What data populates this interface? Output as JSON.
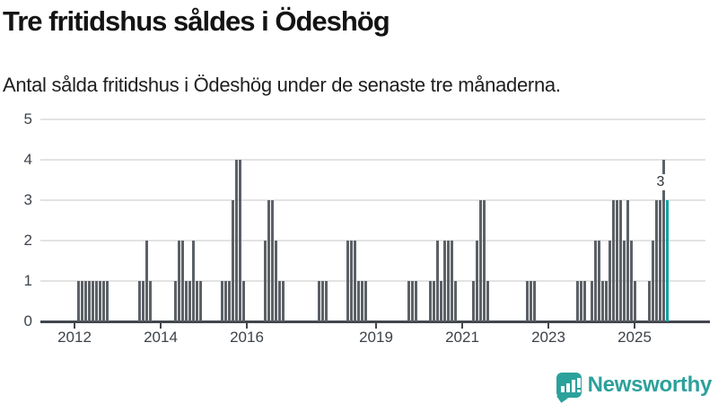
{
  "header": {
    "title": "Tre fritidshus såldes i Ödeshög",
    "subtitle": "Antal sålda fritidshus i Ödeshög under de senaste tre månaderna."
  },
  "footer": {
    "brand": "Newsworthy",
    "icon": "newsworthy-speech-bubble-chart-icon"
  },
  "colors": {
    "bar": "#5c6167",
    "highlight": "#0ea2a2",
    "grid": "#e3e3e3",
    "axis": "#42474d",
    "tick_label": "#3d4349",
    "brand": "#2ba19b"
  },
  "chart_data": {
    "type": "bar",
    "title": "Tre fritidshus såldes i Ödeshög",
    "subtitle": "Antal sålda fritidshus i Ödeshög under de senaste tre månaderna.",
    "unit": "sold vacation homes per rolling 3 months",
    "start_month": "2012-01",
    "end_month": "2025-10",
    "ylim": [
      0,
      5
    ],
    "yticks": [
      0,
      1,
      2,
      3,
      4,
      5
    ],
    "grid": true,
    "legend_position": "none",
    "x_ticks": [
      {
        "label": "2012",
        "month_index": 0
      },
      {
        "label": "2014",
        "month_index": 24
      },
      {
        "label": "2016",
        "month_index": 48
      },
      {
        "label": "2019",
        "month_index": 84
      },
      {
        "label": "2021",
        "month_index": 108
      },
      {
        "label": "2023",
        "month_index": 132
      },
      {
        "label": "2025",
        "month_index": 156
      }
    ],
    "highlight": {
      "month": "2025-10",
      "value": 3,
      "label": "3"
    },
    "points_note": "monthly values; months not listed are 0",
    "points": [
      [
        "2012-02",
        1
      ],
      [
        "2012-03",
        1
      ],
      [
        "2012-04",
        1
      ],
      [
        "2012-05",
        1
      ],
      [
        "2012-06",
        1
      ],
      [
        "2012-07",
        1
      ],
      [
        "2012-08",
        1
      ],
      [
        "2012-09",
        1
      ],
      [
        "2012-10",
        1
      ],
      [
        "2013-07",
        1
      ],
      [
        "2013-08",
        1
      ],
      [
        "2013-09",
        2
      ],
      [
        "2013-10",
        1
      ],
      [
        "2014-05",
        1
      ],
      [
        "2014-06",
        2
      ],
      [
        "2014-07",
        2
      ],
      [
        "2014-08",
        1
      ],
      [
        "2014-09",
        1
      ],
      [
        "2014-10",
        2
      ],
      [
        "2014-11",
        1
      ],
      [
        "2014-12",
        1
      ],
      [
        "2015-06",
        1
      ],
      [
        "2015-07",
        1
      ],
      [
        "2015-08",
        1
      ],
      [
        "2015-09",
        3
      ],
      [
        "2015-10",
        4
      ],
      [
        "2015-11",
        4
      ],
      [
        "2015-12",
        1
      ],
      [
        "2016-06",
        2
      ],
      [
        "2016-07",
        3
      ],
      [
        "2016-08",
        3
      ],
      [
        "2016-09",
        2
      ],
      [
        "2016-10",
        1
      ],
      [
        "2016-11",
        1
      ],
      [
        "2017-09",
        1
      ],
      [
        "2017-10",
        1
      ],
      [
        "2017-11",
        1
      ],
      [
        "2018-05",
        2
      ],
      [
        "2018-06",
        2
      ],
      [
        "2018-07",
        2
      ],
      [
        "2018-08",
        1
      ],
      [
        "2018-09",
        1
      ],
      [
        "2018-10",
        1
      ],
      [
        "2019-10",
        1
      ],
      [
        "2019-11",
        1
      ],
      [
        "2019-12",
        1
      ],
      [
        "2020-04",
        1
      ],
      [
        "2020-05",
        1
      ],
      [
        "2020-06",
        2
      ],
      [
        "2020-07",
        1
      ],
      [
        "2020-08",
        2
      ],
      [
        "2020-09",
        2
      ],
      [
        "2020-10",
        2
      ],
      [
        "2020-11",
        1
      ],
      [
        "2021-04",
        1
      ],
      [
        "2021-05",
        2
      ],
      [
        "2021-06",
        3
      ],
      [
        "2021-07",
        3
      ],
      [
        "2021-08",
        1
      ],
      [
        "2022-07",
        1
      ],
      [
        "2022-08",
        1
      ],
      [
        "2022-09",
        1
      ],
      [
        "2023-09",
        1
      ],
      [
        "2023-10",
        1
      ],
      [
        "2023-11",
        1
      ],
      [
        "2024-01",
        1
      ],
      [
        "2024-02",
        2
      ],
      [
        "2024-03",
        2
      ],
      [
        "2024-04",
        1
      ],
      [
        "2024-05",
        1
      ],
      [
        "2024-06",
        2
      ],
      [
        "2024-07",
        3
      ],
      [
        "2024-08",
        3
      ],
      [
        "2024-09",
        3
      ],
      [
        "2024-10",
        2
      ],
      [
        "2024-11",
        3
      ],
      [
        "2024-12",
        2
      ],
      [
        "2025-01",
        1
      ],
      [
        "2025-05",
        1
      ],
      [
        "2025-06",
        2
      ],
      [
        "2025-07",
        3
      ],
      [
        "2025-08",
        3
      ],
      [
        "2025-09",
        4
      ],
      [
        "2025-10",
        3
      ]
    ]
  }
}
